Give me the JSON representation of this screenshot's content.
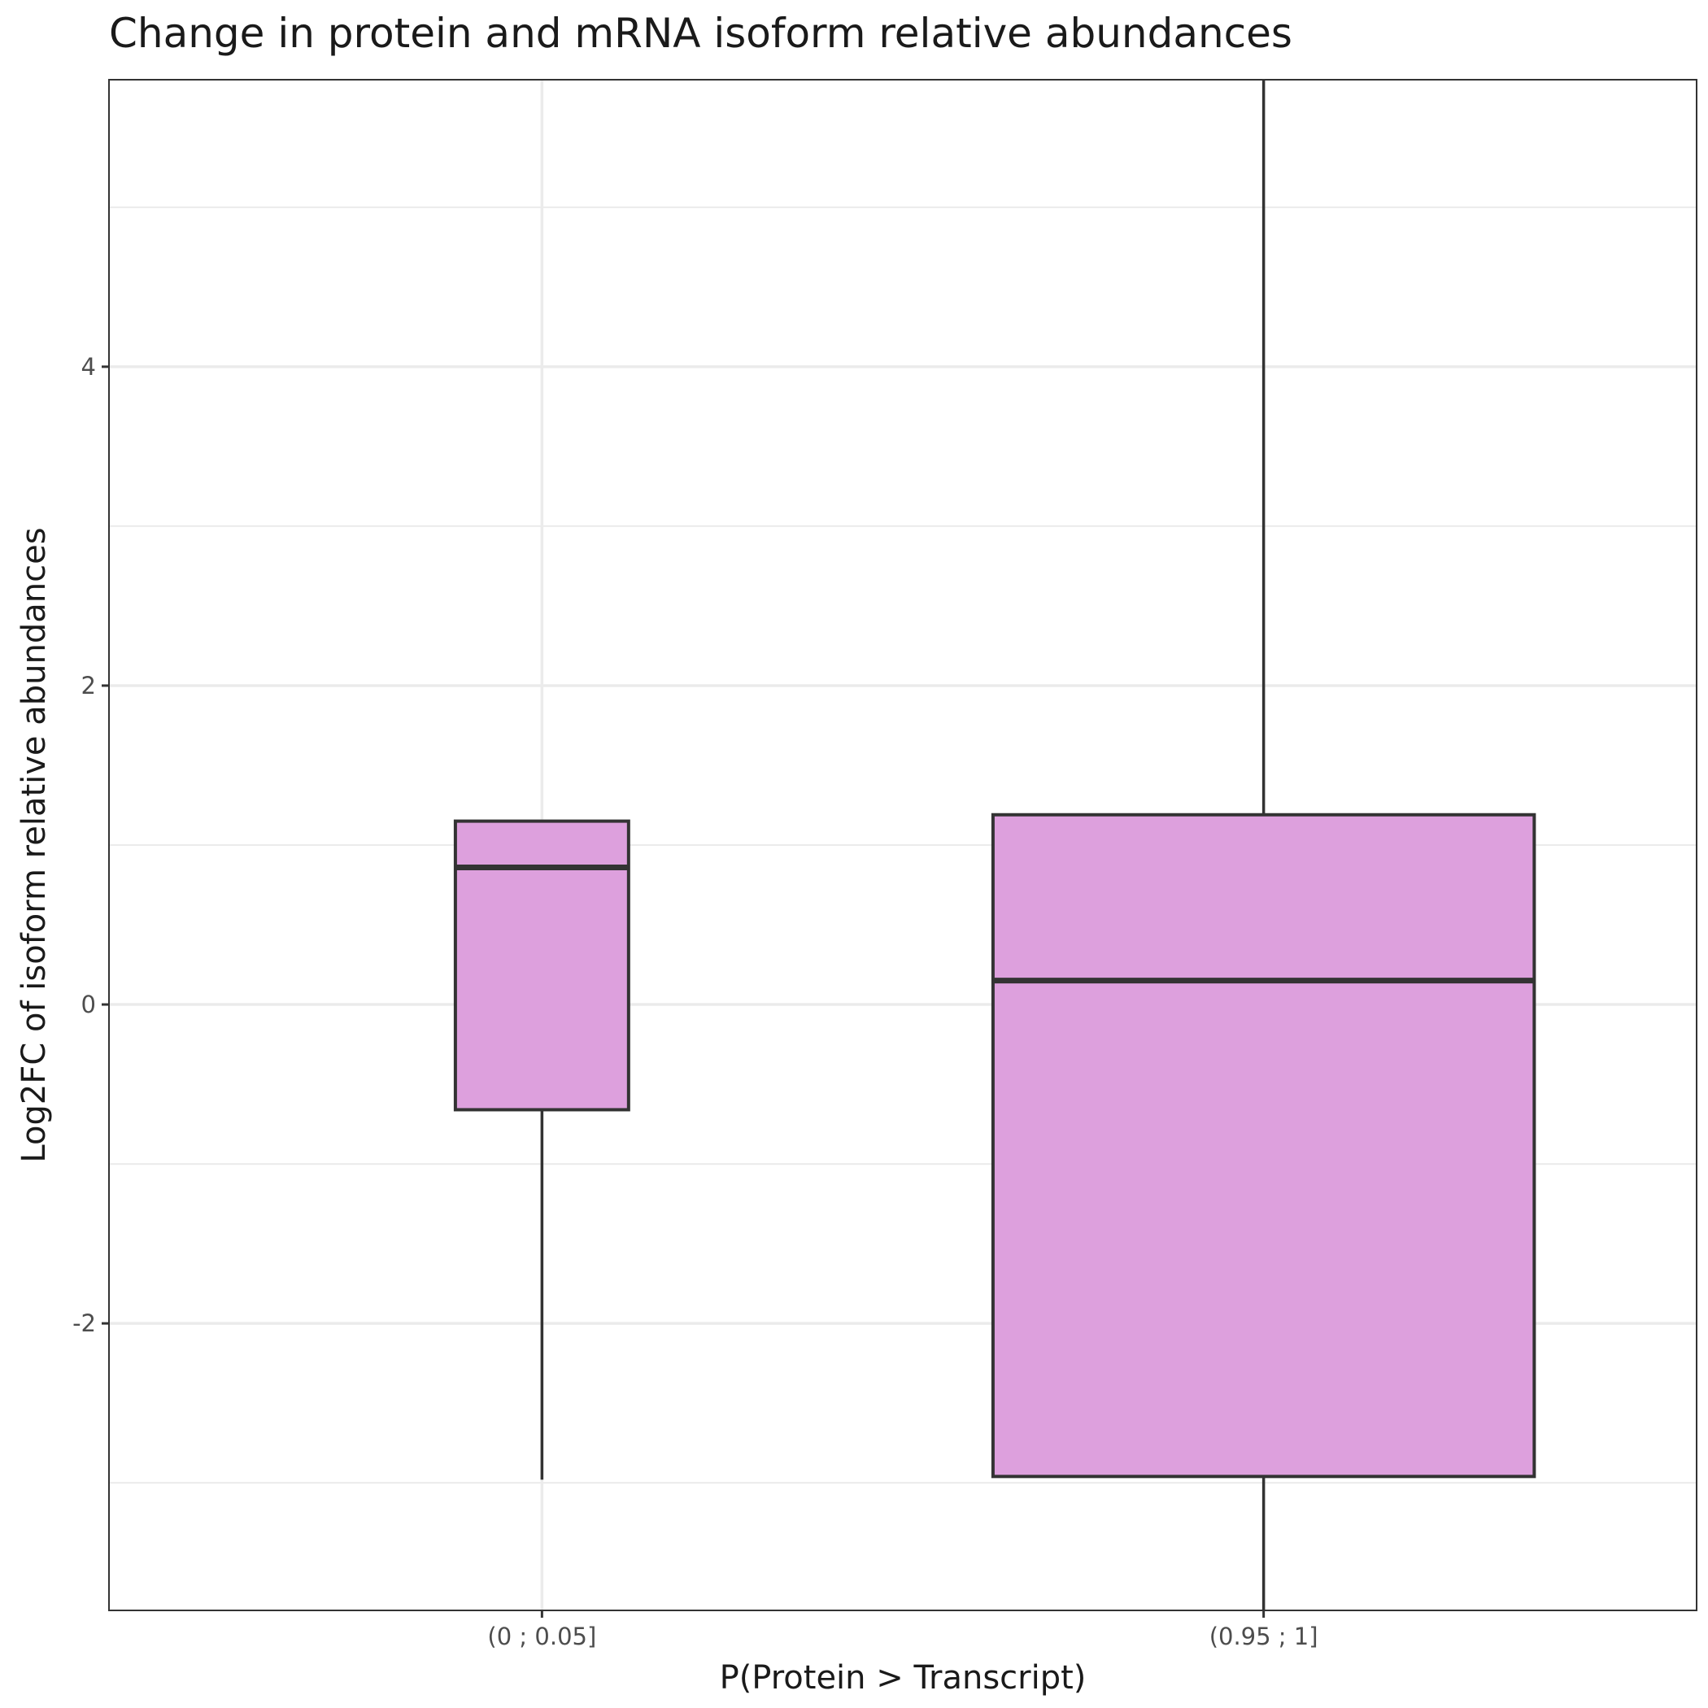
{
  "chart_data": {
    "type": "box",
    "title": "Change in protein and mRNA isoform relative abundances",
    "xlabel": "P(Protein > Transcript)",
    "ylabel": "Log2FC of isoform relative abundances",
    "ylim": [
      -3.8,
      5.8
    ],
    "yticks": [
      -2,
      0,
      2,
      4
    ],
    "ytick_labels": [
      "-2",
      "0",
      "2",
      "4"
    ],
    "grid": true,
    "fill_color": "#dda0dd",
    "stroke_color": "#333333",
    "groups": [
      {
        "label": "(0 ; 0.05]",
        "whisker_low": -2.98,
        "q1": -0.66,
        "median": 0.86,
        "q3": 1.15,
        "whisker_high": 1.15,
        "relative_width": 0.32
      },
      {
        "label": "(0.95 ; 1]",
        "whisker_low": -3.8,
        "q1": -2.96,
        "median": 0.15,
        "q3": 1.19,
        "whisker_high": 5.8,
        "relative_width": 1.0
      }
    ]
  }
}
